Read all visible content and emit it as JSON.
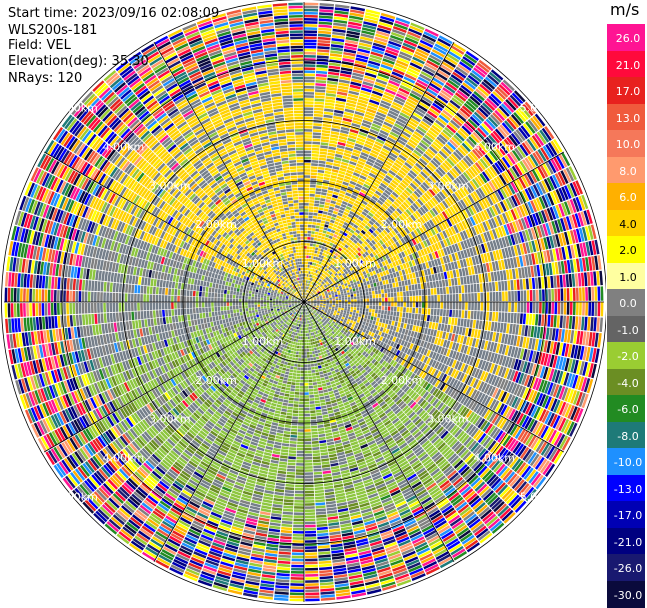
{
  "header": {
    "start_time": "Start time: 2023/09/16 02:08:09",
    "instrument": "WLS200s-181",
    "field": "Field: VEL",
    "elevation": "Elevation(deg): 35.30",
    "nrays": "NRays: 120"
  },
  "ring_labels": [
    "1.00km",
    "2.00km",
    "3.00km",
    "4.00km",
    "5.00km"
  ],
  "colorbar": {
    "unit": "m/s",
    "ticks": [
      "26.0",
      "21.0",
      "17.0",
      "13.0",
      "10.0",
      "8.0",
      "6.0",
      "4.0",
      "2.0",
      "1.0",
      "0.0",
      "-1.0",
      "-2.0",
      "-4.0",
      "-6.0",
      "-8.0",
      "-10.0",
      "-13.0",
      "-17.0",
      "-21.0",
      "-26.0",
      "-30.0"
    ],
    "colors": [
      "#ff1493",
      "#ff0a3c",
      "#e8211e",
      "#f05a3c",
      "#f5785a",
      "#ff9a6e",
      "#ffb000",
      "#ffd200",
      "#ffff00",
      "#ffffa0",
      "#808080",
      "#646464",
      "#9acd32",
      "#6b8e23",
      "#228b22",
      "#1e7a78",
      "#1e90ff",
      "#0000ff",
      "#0000b4",
      "#000080",
      "#191970",
      "#0a0a3c"
    ]
  },
  "range_rings_km": [
    1,
    2,
    3,
    4,
    5
  ]
}
